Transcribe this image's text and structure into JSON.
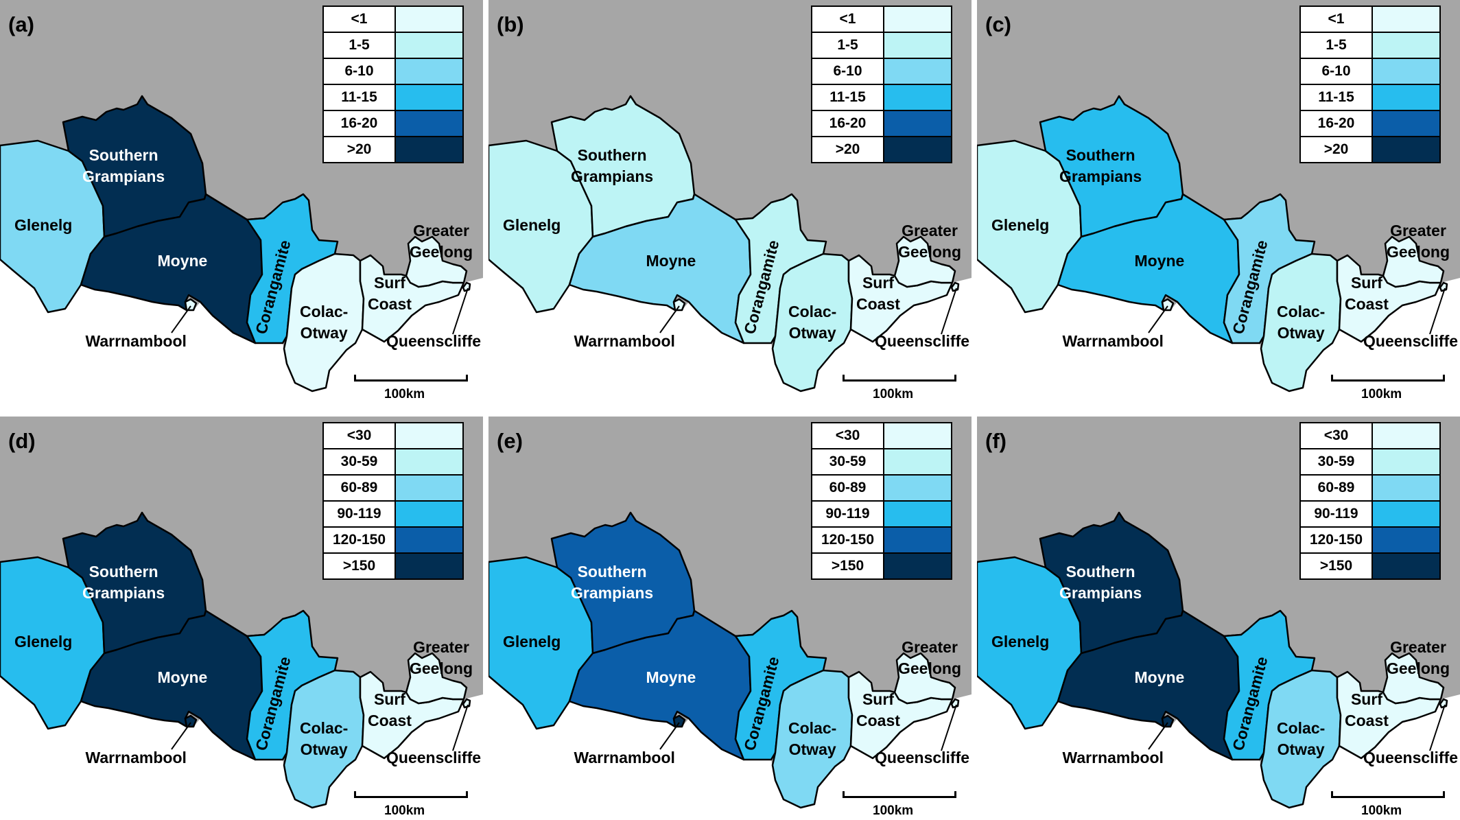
{
  "palette": [
    "#e3fbfd",
    "#bdf4f5",
    "#7fd9f3",
    "#27bdee",
    "#0b5ea9",
    "#022e52"
  ],
  "regions": [
    {
      "id": "glenelg",
      "lines": [
        "Glenelg"
      ]
    },
    {
      "id": "southern-grampians",
      "lines": [
        "Southern",
        "Grampians"
      ]
    },
    {
      "id": "moyne",
      "lines": [
        "Moyne"
      ]
    },
    {
      "id": "warrnambool",
      "lines": [
        "Warrnambool"
      ]
    },
    {
      "id": "corangamite",
      "lines": [
        "Corangamite"
      ]
    },
    {
      "id": "colac-otway",
      "lines": [
        "Colac-",
        "Otway"
      ]
    },
    {
      "id": "surf-coast",
      "lines": [
        "Surf",
        "Coast"
      ]
    },
    {
      "id": "greater-geelong",
      "lines": [
        "Greater",
        "Geelong"
      ]
    },
    {
      "id": "queenscliffe",
      "lines": [
        "Queenscliffe"
      ]
    }
  ],
  "legend_sets": {
    "top": [
      "<1",
      "1-5",
      "6-10",
      "11-15",
      "16-20",
      ">20"
    ],
    "bottom": [
      "<30",
      "30-59",
      "60-89",
      "90-119",
      "120-150",
      ">150"
    ]
  },
  "scale_label": "100km",
  "panels": [
    {
      "label": "(a)",
      "legend": "top",
      "classes": {
        "glenelg": 2,
        "southern-grampians": 5,
        "moyne": 5,
        "warrnambool": 0,
        "corangamite": 3,
        "colac-otway": 0,
        "surf-coast": 0,
        "greater-geelong": 0,
        "queenscliffe": 0
      }
    },
    {
      "label": "(b)",
      "legend": "top",
      "classes": {
        "glenelg": 1,
        "southern-grampians": 1,
        "moyne": 2,
        "warrnambool": 0,
        "corangamite": 1,
        "colac-otway": 1,
        "surf-coast": 0,
        "greater-geelong": 0,
        "queenscliffe": 0
      }
    },
    {
      "label": "(c)",
      "legend": "top",
      "classes": {
        "glenelg": 1,
        "southern-grampians": 3,
        "moyne": 3,
        "warrnambool": 0,
        "corangamite": 2,
        "colac-otway": 1,
        "surf-coast": 0,
        "greater-geelong": 0,
        "queenscliffe": 0
      }
    },
    {
      "label": "(d)",
      "legend": "bottom",
      "classes": {
        "glenelg": 3,
        "southern-grampians": 5,
        "moyne": 5,
        "warrnambool": 5,
        "corangamite": 3,
        "colac-otway": 2,
        "surf-coast": 0,
        "greater-geelong": 0,
        "queenscliffe": 0
      }
    },
    {
      "label": "(e)",
      "legend": "bottom",
      "classes": {
        "glenelg": 3,
        "southern-grampians": 4,
        "moyne": 4,
        "warrnambool": 5,
        "corangamite": 3,
        "colac-otway": 2,
        "surf-coast": 0,
        "greater-geelong": 0,
        "queenscliffe": 0
      }
    },
    {
      "label": "(f)",
      "legend": "bottom",
      "classes": {
        "glenelg": 3,
        "southern-grampians": 5,
        "moyne": 5,
        "warrnambool": 5,
        "corangamite": 3,
        "colac-otway": 2,
        "surf-coast": 0,
        "greater-geelong": 0,
        "queenscliffe": 0
      }
    }
  ]
}
